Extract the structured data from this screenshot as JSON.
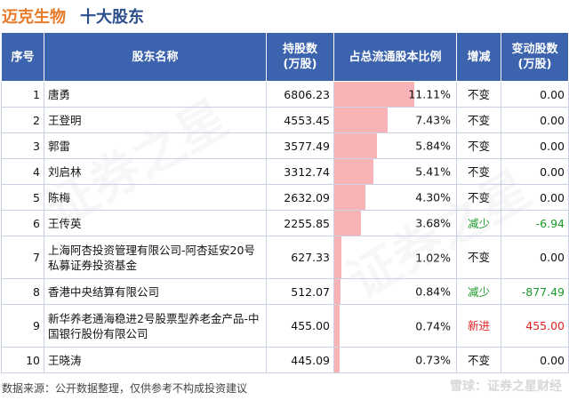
{
  "header": {
    "company": "迈克生物",
    "section": "十大股东"
  },
  "table": {
    "columns": [
      "序号",
      "股东名称",
      "持股数\n(万股)",
      "占总流通股本比例",
      "增减",
      "变动股数\n(万股)"
    ],
    "col_idx": "序号",
    "col_name": "股东名称",
    "col_shares_1": "持股数",
    "col_shares_2": "(万股)",
    "col_ratio": "占总流通股本比例",
    "col_change": "增减",
    "col_delta_1": "变动股数",
    "col_delta_2": "(万股)",
    "rows": [
      {
        "idx": "1",
        "name": "唐勇",
        "shares": "6806.23",
        "ratio": "11.11%",
        "ratio_value": 11.11,
        "change": "不变",
        "delta": "0.00",
        "type": "same"
      },
      {
        "idx": "2",
        "name": "王登明",
        "shares": "4553.45",
        "ratio": "7.43%",
        "ratio_value": 7.43,
        "change": "不变",
        "delta": "0.00",
        "type": "same"
      },
      {
        "idx": "3",
        "name": "郭雷",
        "shares": "3577.49",
        "ratio": "5.84%",
        "ratio_value": 5.84,
        "change": "不变",
        "delta": "0.00",
        "type": "same"
      },
      {
        "idx": "4",
        "name": "刘启林",
        "shares": "3312.74",
        "ratio": "5.41%",
        "ratio_value": 5.41,
        "change": "不变",
        "delta": "0.00",
        "type": "same"
      },
      {
        "idx": "5",
        "name": "陈梅",
        "shares": "2632.09",
        "ratio": "4.30%",
        "ratio_value": 4.3,
        "change": "不变",
        "delta": "0.00",
        "type": "same"
      },
      {
        "idx": "6",
        "name": "王传英",
        "shares": "2255.85",
        "ratio": "3.68%",
        "ratio_value": 3.68,
        "change": "减少",
        "delta": "-6.94",
        "type": "down"
      },
      {
        "idx": "7",
        "name": "上海阿杏投资管理有限公司-阿杏延安20号私募证券投资基金",
        "shares": "627.33",
        "ratio": "1.02%",
        "ratio_value": 1.02,
        "change": "不变",
        "delta": "0.00",
        "type": "same"
      },
      {
        "idx": "8",
        "name": "香港中央结算有限公司",
        "shares": "512.07",
        "ratio": "0.84%",
        "ratio_value": 0.84,
        "change": "减少",
        "delta": "-877.49",
        "type": "down"
      },
      {
        "idx": "9",
        "name": "新华养老通海稳进2号股票型养老金产品-中国银行股份有限公司",
        "shares": "455.00",
        "ratio": "0.74%",
        "ratio_value": 0.74,
        "change": "新进",
        "delta": "455.00",
        "type": "up"
      },
      {
        "idx": "10",
        "name": "王晓涛",
        "shares": "445.09",
        "ratio": "0.73%",
        "ratio_value": 0.73,
        "change": "不变",
        "delta": "0.00",
        "type": "same"
      }
    ]
  },
  "footer": {
    "source": "数据来源：公开数据整理，仅供参考不构成投资建议",
    "brand": "雪球：证券之星财经"
  },
  "colors": {
    "header_bg": "#3c63ae",
    "bar": "#f8b3b6",
    "down": "#1a9a2a",
    "up": "#e02020",
    "company": "#e87b2a",
    "section": "#2c4f8c"
  },
  "watermark": "证券之星"
}
